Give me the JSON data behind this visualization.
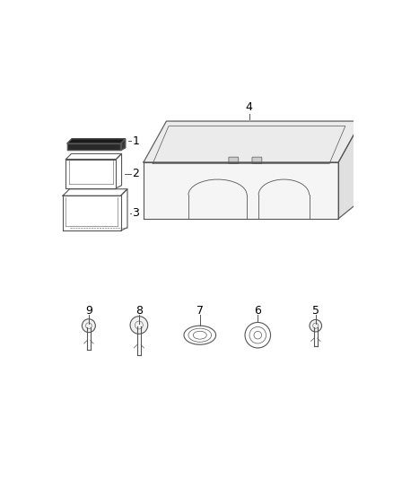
{
  "bg_color": "#ffffff",
  "line_color": "#555555",
  "line_width": 0.8,
  "positions_bottom": {
    "9": 0.13,
    "8": 0.295,
    "7": 0.495,
    "6": 0.685,
    "5": 0.875
  },
  "label_fontsize": 9
}
